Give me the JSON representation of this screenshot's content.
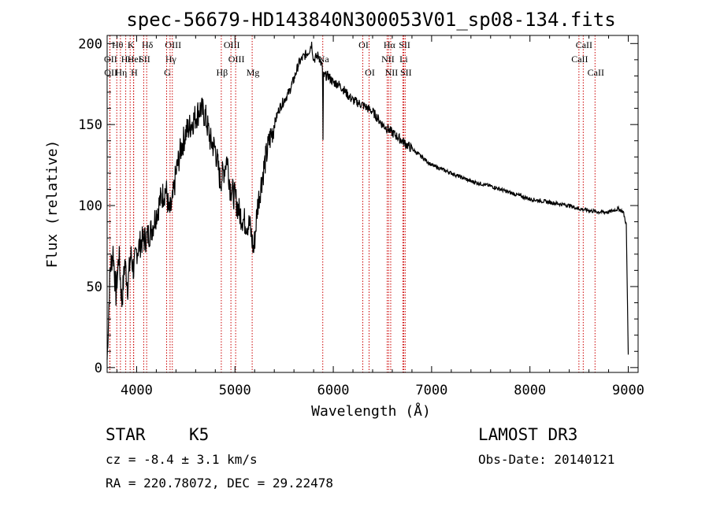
{
  "chart_data": {
    "type": "line",
    "title": "spec-56679-HD143840N300053V01_sp08-134.fits",
    "xlabel": "Wavelength (Å)",
    "ylabel": "Flux (relative)",
    "xlim": [
      3700,
      9100
    ],
    "ylim": [
      -3,
      205
    ],
    "xticks": [
      4000,
      5000,
      6000,
      7000,
      8000,
      9000
    ],
    "yticks": [
      0,
      50,
      100,
      150,
      200
    ],
    "series": [
      {
        "name": "spectrum",
        "x": [
          3700,
          3730,
          3760,
          3790,
          3820,
          3850,
          3880,
          3910,
          3940,
          3970,
          4000,
          4050,
          4100,
          4150,
          4200,
          4250,
          4300,
          4330,
          4360,
          4400,
          4450,
          4500,
          4550,
          4600,
          4650,
          4700,
          4750,
          4800,
          4850,
          4880,
          4920,
          4950,
          5000,
          5050,
          5100,
          5150,
          5190,
          5230,
          5270,
          5300,
          5350,
          5400,
          5450,
          5500,
          5550,
          5600,
          5650,
          5700,
          5750,
          5780,
          5800,
          5850,
          5890,
          5895,
          5900,
          5950,
          6000,
          6050,
          6100,
          6150,
          6200,
          6300,
          6400,
          6500,
          6600,
          6700,
          6800,
          6900,
          7000,
          7200,
          7400,
          7600,
          7800,
          8000,
          8200,
          8400,
          8500,
          8600,
          8700,
          8800,
          8900,
          8950,
          8980,
          9000
        ],
        "y": [
          5,
          60,
          72,
          45,
          70,
          40,
          65,
          50,
          70,
          60,
          72,
          78,
          80,
          85,
          95,
          105,
          110,
          95,
          100,
          120,
          135,
          145,
          150,
          155,
          160,
          155,
          140,
          135,
          115,
          120,
          130,
          112,
          105,
          95,
          90,
          88,
          72,
          100,
          115,
          125,
          140,
          150,
          160,
          165,
          170,
          178,
          188,
          192,
          195,
          200,
          190,
          193,
          185,
          140,
          180,
          180,
          176,
          175,
          172,
          168,
          165,
          162,
          158,
          150,
          145,
          140,
          135,
          130,
          125,
          120,
          115,
          112,
          108,
          104,
          102,
          100,
          98,
          97,
          96,
          96,
          98,
          96,
          88,
          8
        ]
      }
    ],
    "line_markers": [
      {
        "label": "Hθ",
        "x": 3798,
        "row": 1
      },
      {
        "label": "OII",
        "x": 3727,
        "row": 2
      },
      {
        "label": "OII",
        "x": 3729,
        "row": 3
      },
      {
        "label": "Hε",
        "x": 3889,
        "row": 2
      },
      {
        "label": "Hη",
        "x": 3835,
        "row": 3
      },
      {
        "label": "K",
        "x": 3934,
        "row": 1
      },
      {
        "label": "HeI",
        "x": 3970,
        "row": 2
      },
      {
        "label": "H",
        "x": 3968,
        "row": 3
      },
      {
        "label": "Hδ",
        "x": 4102,
        "row": 1
      },
      {
        "label": "SII",
        "x": 4072,
        "row": 2
      },
      {
        "label": "OIII",
        "x": 4363,
        "row": 1
      },
      {
        "label": "Hγ",
        "x": 4340,
        "row": 2
      },
      {
        "label": "G",
        "x": 4305,
        "row": 3
      },
      {
        "label": "OIII",
        "x": 4959,
        "row": 1
      },
      {
        "label": "OIII",
        "x": 5007,
        "row": 2
      },
      {
        "label": "Hβ",
        "x": 4861,
        "row": 3
      },
      {
        "label": "Mg",
        "x": 5175,
        "row": 3
      },
      {
        "label": "Na",
        "x": 5893,
        "row": 2
      },
      {
        "label": "OI",
        "x": 6300,
        "row": 1
      },
      {
        "label": "OI",
        "x": 6364,
        "row": 3
      },
      {
        "label": "Hα",
        "x": 6563,
        "row": 1
      },
      {
        "label": "NII",
        "x": 6548,
        "row": 2
      },
      {
        "label": "NII",
        "x": 6584,
        "row": 3
      },
      {
        "label": "SII",
        "x": 6717,
        "row": 1
      },
      {
        "label": "Li",
        "x": 6708,
        "row": 2
      },
      {
        "label": "SII",
        "x": 6731,
        "row": 3
      },
      {
        "label": "CaII",
        "x": 8542,
        "row": 1
      },
      {
        "label": "CaII",
        "x": 8498,
        "row": 2
      },
      {
        "label": "CaII",
        "x": 8662,
        "row": 3
      }
    ]
  },
  "info": {
    "object_type": "STAR",
    "subclass": "K5",
    "survey": "LAMOST DR3",
    "cz": "cz = -8.4 ± 3.1 km/s",
    "obs_date": "Obs-Date: 20140121",
    "coords": "RA = 220.78072, DEC =  29.22478"
  },
  "colors": {
    "line": "#000000",
    "marker": "#cc0000",
    "axes": "#000000"
  }
}
